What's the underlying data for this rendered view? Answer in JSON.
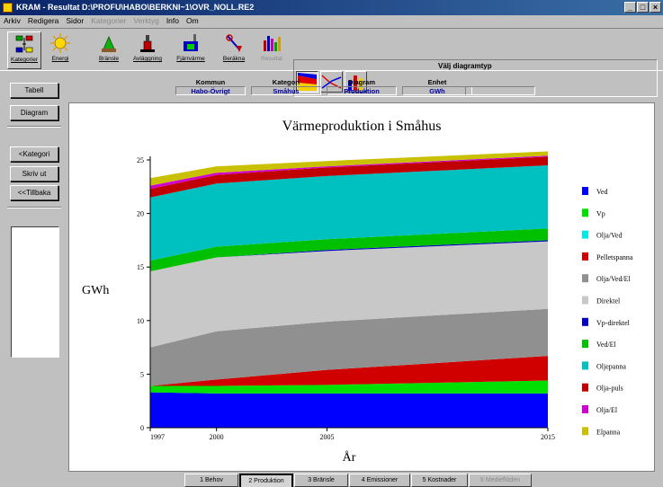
{
  "window": {
    "title": "KRAM - Resultat D:\\PROFU\\HABO\\BERKNI~1\\OVR_NOLL.RE2",
    "buttons": [
      "_",
      "□",
      "×"
    ]
  },
  "menu": [
    {
      "label": "Arkiv",
      "enabled": true
    },
    {
      "label": "Redigera",
      "enabled": true
    },
    {
      "label": "Sidor",
      "enabled": true
    },
    {
      "label": "Kategorier",
      "enabled": false
    },
    {
      "label": "Verktyg",
      "enabled": false
    },
    {
      "label": "Info",
      "enabled": true
    },
    {
      "label": "Om",
      "enabled": true
    }
  ],
  "toolbar": {
    "tools": [
      {
        "label": "Kategorier",
        "icon": "categories-icon",
        "enabled": true
      },
      {
        "label": "Energi",
        "icon": "sun-icon",
        "enabled": true
      },
      {
        "label": "Bränsle",
        "icon": "fuel-icon",
        "enabled": true
      },
      {
        "label": "Avläggning",
        "icon": "disposal-icon",
        "enabled": true
      },
      {
        "label": "Fjärrvärme",
        "icon": "district-heating-icon",
        "enabled": true
      },
      {
        "label": "Beräkna",
        "icon": "calculate-icon",
        "enabled": true
      },
      {
        "label": "Resultat",
        "icon": "result-chart-icon",
        "enabled": false
      }
    ],
    "diagram_group_title": "Välj diagramtyp",
    "diagram_types": [
      "area-chart-icon",
      "line-chart-icon",
      "bar-chart-icon"
    ]
  },
  "sidebar": {
    "buttons": [
      "Tabell",
      "Diagram",
      "<Kategori",
      "Skriv ut",
      "<<Tillbaka"
    ]
  },
  "info": {
    "columns": [
      {
        "head": "Kommun",
        "value": "Habo-Övrigt"
      },
      {
        "head": "Kategori",
        "value": "Småhus"
      },
      {
        "head": "Diagram",
        "value": "Produktion"
      },
      {
        "head": "Enhet",
        "value": "GWh"
      },
      {
        "head": "",
        "value": ""
      }
    ]
  },
  "chart_data": {
    "type": "area",
    "title": "Värmeproduktion i Småhus",
    "xlabel": "År",
    "ylabel": "GWh",
    "x": [
      1997,
      2000,
      2005,
      2015
    ],
    "xlim": [
      1997,
      2015
    ],
    "ylim": [
      0,
      25
    ],
    "yticks": [
      0,
      5,
      10,
      15,
      20,
      25
    ],
    "stacked": true,
    "legend_position": "right",
    "series": [
      {
        "name": "Ved",
        "color": "#0000ff",
        "values": [
          3.3,
          3.2,
          3.2,
          3.2
        ]
      },
      {
        "name": "Vp",
        "color": "#00e000",
        "values": [
          0.6,
          0.7,
          0.8,
          1.2
        ]
      },
      {
        "name": "Olja/Ved",
        "color": "#00e8e8",
        "values": [
          0,
          0,
          0,
          0
        ]
      },
      {
        "name": "Pelletspanna",
        "color": "#d00000",
        "values": [
          0,
          0.6,
          1.4,
          2.3
        ]
      },
      {
        "name": "Olja/Ved/El",
        "color": "#909090",
        "values": [
          3.6,
          4.5,
          4.5,
          4.4
        ]
      },
      {
        "name": "Direktel",
        "color": "#c8c8c8",
        "values": [
          7.1,
          6.9,
          6.6,
          6.3
        ]
      },
      {
        "name": "Vp-direktel",
        "color": "#0000c0",
        "values": [
          0,
          0,
          0.1,
          0.1
        ]
      },
      {
        "name": "Ved/El",
        "color": "#00c000",
        "values": [
          1.0,
          1.0,
          1.0,
          1.1
        ]
      },
      {
        "name": "Oljepanna",
        "color": "#00c0c0",
        "values": [
          5.9,
          5.9,
          5.9,
          5.9
        ]
      },
      {
        "name": "Olja-puls",
        "color": "#c00000",
        "values": [
          0.8,
          0.8,
          0.8,
          0.8
        ]
      },
      {
        "name": "Olja/El",
        "color": "#d000d0",
        "values": [
          0.3,
          0.2,
          0.1,
          0.1
        ]
      },
      {
        "name": "Elpanna",
        "color": "#c8c000",
        "values": [
          0.7,
          0.6,
          0.5,
          0.4
        ]
      }
    ]
  },
  "tabs": [
    {
      "label": "1 Behov",
      "active": false,
      "enabled": true
    },
    {
      "label": "2 Produktion",
      "active": true,
      "enabled": true
    },
    {
      "label": "3 Bränsle",
      "active": false,
      "enabled": true
    },
    {
      "label": "4 Emissioner",
      "active": false,
      "enabled": true
    },
    {
      "label": "5 Kostnader",
      "active": false,
      "enabled": true
    },
    {
      "label": "6 Medieflöden",
      "active": false,
      "enabled": false
    }
  ]
}
